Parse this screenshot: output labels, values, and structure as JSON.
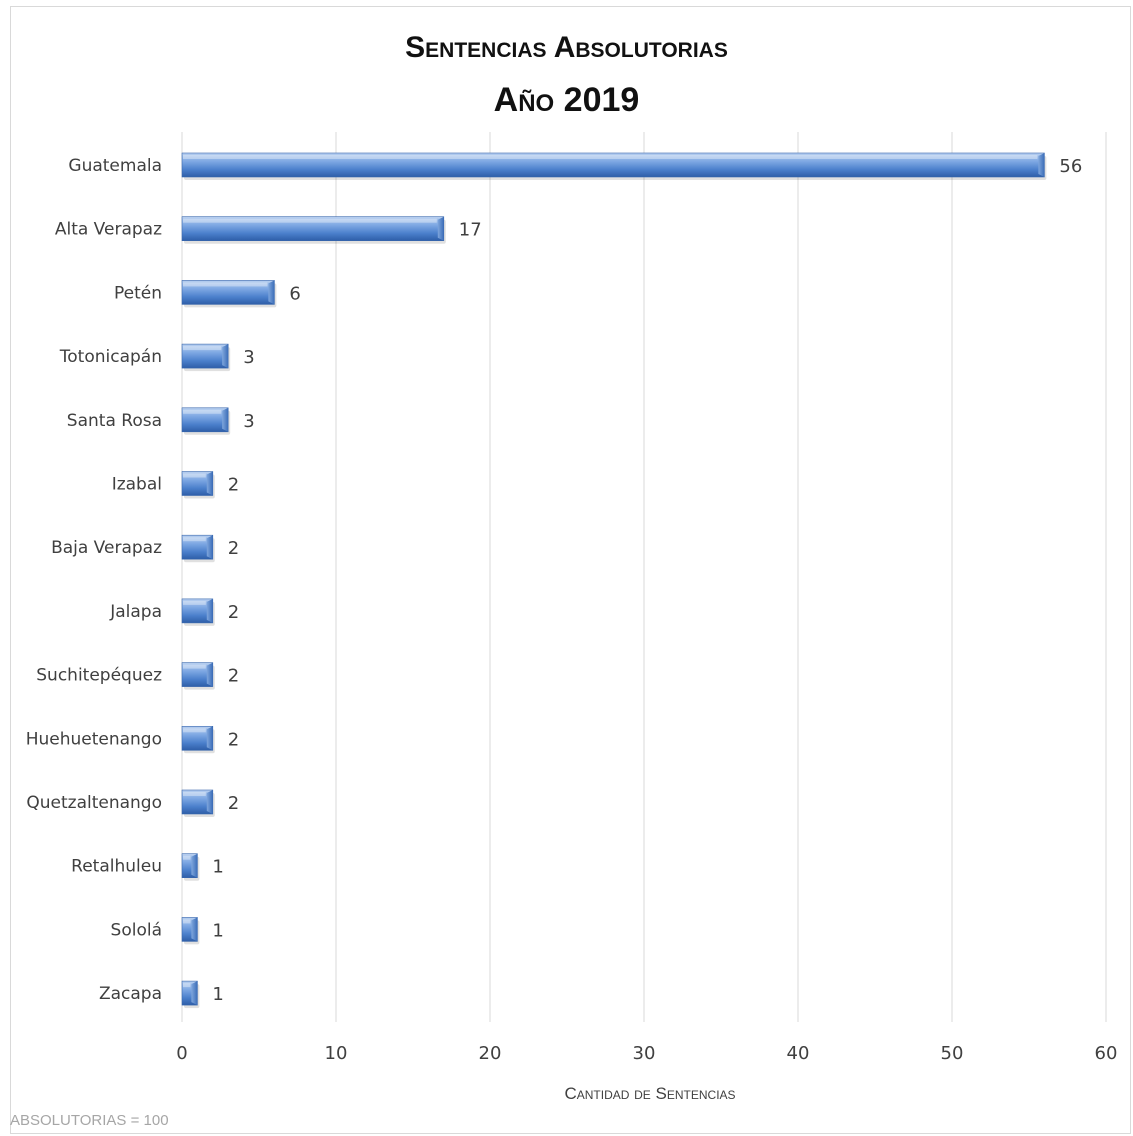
{
  "chart_data": {
    "type": "bar",
    "orientation": "horizontal",
    "title": "Sentencias Absolutorias",
    "subtitle": "Año 2019",
    "categories": [
      "Guatemala",
      "Alta Verapaz",
      "Petén",
      "Totonicapán",
      "Santa Rosa",
      "Izabal",
      "Baja Verapaz",
      "Jalapa",
      "Suchitepéquez",
      "Huehuetenango",
      "Quetzaltenango",
      "Retalhuleu",
      "Sololá",
      "Zacapa"
    ],
    "values": [
      56,
      17,
      6,
      3,
      3,
      2,
      2,
      2,
      2,
      2,
      2,
      1,
      1,
      1
    ],
    "xlabel": "Cantidad de Sentencias",
    "ylabel": "",
    "xlim": [
      0,
      60
    ],
    "xticks": [
      0,
      10,
      20,
      30,
      40,
      50,
      60
    ],
    "grid": true,
    "data_labels": true,
    "bar_color": "#5b8fd4"
  },
  "footnote": "ABSOLUTORIAS = 100"
}
